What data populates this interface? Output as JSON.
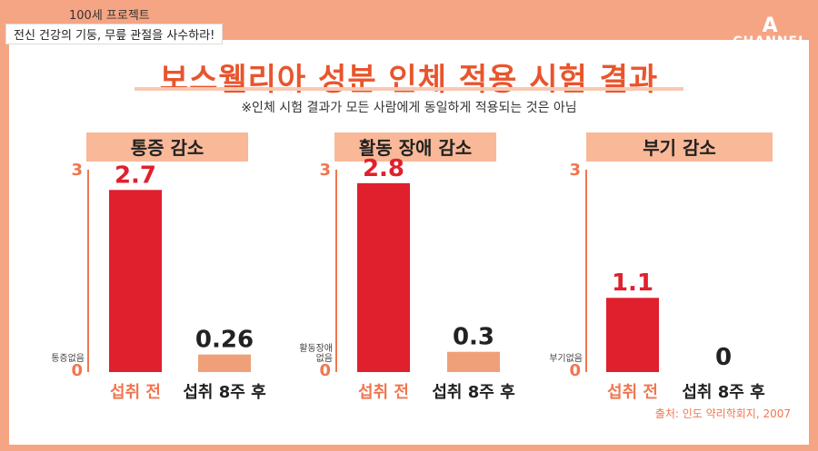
{
  "header": {
    "program": "100세 프로젝트",
    "headline": "전신 건강의 기둥, 무릎 관절을 사수하라!",
    "logo_mark": "A",
    "logo_word": "CHANNEL"
  },
  "title": "보스웰리아 성분 인체 적용 시험 결과",
  "note": "※인체 시험 결과가 모든 사람에게 동일하게 적용되는 것은 아님",
  "source": "출처: 인도 약리학회지, 2007",
  "colors": {
    "accent": "#e8552d",
    "panel": "#f9b897",
    "bar_before": "#e0202d",
    "bar_after": "#f0a078",
    "axis": "#f0764f"
  },
  "chart_data": [
    {
      "type": "bar",
      "title": "통증 감소",
      "categories": [
        "섭취 전",
        "섭취 8주 후"
      ],
      "values": [
        2.7,
        0.26
      ],
      "value_labels": [
        "2.7",
        "0.26"
      ],
      "ylim": [
        0,
        3
      ],
      "y_ticks": [
        "3",
        "0"
      ],
      "zero_label": [
        "통증없음"
      ]
    },
    {
      "type": "bar",
      "title": "활동 장애 감소",
      "categories": [
        "섭취 전",
        "섭취 8주 후"
      ],
      "values": [
        2.8,
        0.3
      ],
      "value_labels": [
        "2.8",
        "0.3"
      ],
      "ylim": [
        0,
        3
      ],
      "y_ticks": [
        "3",
        "0"
      ],
      "zero_label": [
        "활동장애",
        "없음"
      ]
    },
    {
      "type": "bar",
      "title": "부기 감소",
      "categories": [
        "섭취 전",
        "섭취 8주 후"
      ],
      "values": [
        1.1,
        0
      ],
      "value_labels": [
        "1.1",
        "0"
      ],
      "ylim": [
        0,
        3
      ],
      "y_ticks": [
        "3",
        "0"
      ],
      "zero_label": [
        "부기없음"
      ]
    }
  ]
}
